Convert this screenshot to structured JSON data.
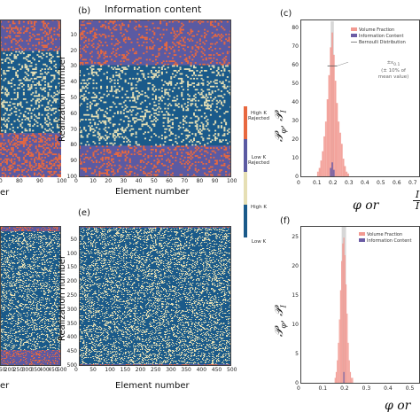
{
  "colors": {
    "low_k": "#1a5a8a",
    "high_k": "#e6dfb4",
    "low_k_rejected": "#5b5aa2",
    "high_k_rejected": "#e8683f",
    "volume_fraction": "#f29a92",
    "information_content": "#6b5ca5",
    "bernoulli": "#bdbdbd"
  },
  "panel_b": {
    "label": "(b)",
    "title": "Information content",
    "ylabel": "Realization number",
    "xlabel": "Element number",
    "x_ticks": [
      "0",
      "10",
      "20",
      "30",
      "40",
      "50",
      "60",
      "70",
      "80",
      "90",
      "100"
    ],
    "y_ticks": [
      "10",
      "20",
      "30",
      "40",
      "50",
      "60",
      "70",
      "80",
      "90",
      "100"
    ]
  },
  "panel_a_partial": {
    "x_ticks": [
      "70",
      "80",
      "90",
      "100"
    ],
    "xlabel_fragment": "er"
  },
  "colorbar": {
    "labels": [
      "High K Rejected",
      "Low K Rejected",
      "High K",
      "Low K"
    ]
  },
  "panel_c": {
    "label": "(c)",
    "ylabel": "P_φ, P_I",
    "y_ticks": [
      "0",
      "10",
      "20",
      "30",
      "40",
      "50",
      "60",
      "70",
      "80"
    ],
    "x_ticks": [
      "0",
      "0.1",
      "0.2",
      "0.3",
      "0.4",
      "0.5",
      "0.6",
      "0.7"
    ],
    "legend": [
      "Volume Fraction",
      "Information Content",
      "Bernoulli Distribution"
    ],
    "annotation_symbol": "±ε",
    "annotation_subscript": "0.1",
    "annotation_text": [
      "(± 10% of",
      "mean value)"
    ],
    "xlabel_math": "φ  or  ",
    "xlabel_frac_num": "I",
    "xlabel_frac_den": "I"
  },
  "panel_d_partial": {
    "x_ticks": [
      "150",
      "200",
      "250",
      "300",
      "350",
      "400",
      "450",
      "500"
    ],
    "xlabel_fragment": "er"
  },
  "panel_e": {
    "label": "(e)",
    "ylabel": "Realization number",
    "xlabel": "Element number",
    "x_ticks": [
      "0",
      "50",
      "100",
      "150",
      "200",
      "250",
      "300",
      "350",
      "400",
      "450",
      "500"
    ],
    "y_ticks": [
      "50",
      "100",
      "150",
      "200",
      "250",
      "300",
      "350",
      "400",
      "450",
      "500"
    ]
  },
  "panel_f": {
    "label": "(f)",
    "ylabel": "P_φ, P_I",
    "y_ticks": [
      "0",
      "5",
      "10",
      "15",
      "20",
      "25"
    ],
    "x_ticks": [
      "0",
      "0.1",
      "0.2",
      "0.3",
      "0.4",
      "0.5"
    ],
    "legend": [
      "Volume Fraction",
      "Information Content"
    ],
    "xlabel_math": "φ  or  "
  },
  "chart_data": [
    {
      "type": "heatmap",
      "panel": "b",
      "title": "Information content",
      "xlabel": "Element number",
      "ylabel": "Realization number",
      "xlim": [
        0,
        100
      ],
      "ylim": [
        0,
        100
      ],
      "categories": [
        "Low K",
        "High K",
        "Low K Rejected",
        "High K Rejected"
      ],
      "row_bands": [
        {
          "rows": [
            0,
            29
          ],
          "state": "rejected"
        },
        {
          "rows": [
            29,
            80
          ],
          "state": "accepted"
        },
        {
          "rows": [
            80,
            100
          ],
          "state": "rejected"
        }
      ],
      "high_k_fraction": 0.2
    },
    {
      "type": "heatmap",
      "panel": "e",
      "xlabel": "Element number",
      "ylabel": "Realization number",
      "xlim": [
        0,
        500
      ],
      "ylim": [
        0,
        500
      ],
      "row_bands": [
        {
          "rows": [
            0,
            6
          ],
          "state": "rejected"
        },
        {
          "rows": [
            6,
            494
          ],
          "state": "accepted"
        },
        {
          "rows": [
            494,
            500
          ],
          "state": "rejected"
        }
      ],
      "high_k_fraction": 0.2
    },
    {
      "type": "bar",
      "panel": "c",
      "xlim": [
        0,
        0.75
      ],
      "ylim": [
        0,
        85
      ],
      "series": [
        {
          "name": "Volume Fraction",
          "bins": [
            0.11,
            0.12,
            0.13,
            0.14,
            0.15,
            0.16,
            0.17,
            0.18,
            0.19,
            0.2,
            0.21,
            0.22,
            0.23,
            0.24,
            0.25,
            0.26,
            0.27,
            0.28,
            0.29,
            0.3
          ],
          "values": [
            3,
            5,
            9,
            14,
            22,
            30,
            42,
            55,
            70,
            78,
            66,
            52,
            40,
            30,
            24,
            18,
            10,
            6,
            3,
            2
          ]
        },
        {
          "name": "Information Content",
          "bins": [
            0.19,
            0.2,
            0.21
          ],
          "values": [
            5,
            8,
            4
          ]
        },
        {
          "name": "Bernoulli Distribution",
          "bins": [
            0.2
          ],
          "values": [
            84
          ]
        }
      ]
    },
    {
      "type": "bar",
      "panel": "f",
      "xlim": [
        0,
        0.55
      ],
      "ylim": [
        0,
        27
      ],
      "series": [
        {
          "name": "Volume Fraction",
          "bins": [
            0.16,
            0.165,
            0.17,
            0.175,
            0.18,
            0.185,
            0.19,
            0.195,
            0.2,
            0.205,
            0.21,
            0.215,
            0.22,
            0.225,
            0.23,
            0.235,
            0.24
          ],
          "values": [
            1,
            2,
            4,
            7,
            11,
            16,
            21,
            24,
            25,
            22,
            17,
            12,
            7,
            4,
            2,
            1,
            1
          ]
        },
        {
          "name": "Information Content",
          "bins": [
            0.2
          ],
          "values": [
            2
          ]
        },
        {
          "name": "Bernoulli Distribution",
          "bins": [
            0.2
          ],
          "values": [
            27
          ]
        }
      ]
    }
  ]
}
